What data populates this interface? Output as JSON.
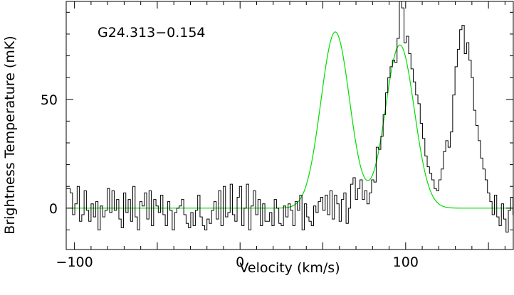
{
  "chart_data": {
    "type": "line",
    "annotation": "G24.313−0.154",
    "xlabel": "Velocity (km/s)",
    "ylabel": "Brightness Temperature (mK)",
    "xlim": [
      -105,
      165
    ],
    "ylim": [
      -19,
      95
    ],
    "x_ticks": [
      -100,
      0,
      100
    ],
    "y_ticks": [
      0,
      50
    ],
    "series": [
      {
        "kind": "spectrum-steps",
        "color": "#000000",
        "x_start": -104,
        "x_step": 1.4,
        "values": [
          9,
          7,
          -3,
          2,
          10,
          -6,
          -3,
          8,
          -1,
          -6,
          2,
          -4,
          3,
          -10,
          1,
          -4,
          -1,
          9,
          -2,
          8,
          -1,
          4,
          -5,
          -9,
          7,
          -2,
          4,
          -6,
          10,
          -4,
          -10,
          3,
          1,
          7,
          -5,
          8,
          -8,
          4,
          1,
          -2,
          6,
          -3,
          -8,
          3,
          -1,
          -10,
          -2,
          0,
          1,
          4,
          -3,
          -7,
          -9,
          -2,
          -8,
          -1,
          6,
          -4,
          -8,
          -10,
          -5,
          -7,
          -1,
          3,
          -5,
          8,
          -8,
          10,
          -4,
          -2,
          11,
          -3,
          -6,
          5,
          10,
          -8,
          0,
          11,
          -10,
          1,
          8,
          -3,
          4,
          -8,
          2,
          -6,
          -6,
          -2,
          -8,
          4,
          0,
          -7,
          -8,
          1,
          -4,
          2,
          -1,
          -8,
          3,
          -1,
          6,
          -10,
          2,
          -4,
          -6,
          -8,
          1,
          -2,
          3,
          5,
          -1,
          6,
          -3,
          8,
          -5,
          6,
          2,
          -6,
          4,
          7,
          -7,
          0,
          11,
          14,
          4,
          9,
          13,
          4,
          8,
          2,
          7,
          13,
          12,
          28,
          27,
          33,
          43,
          53,
          60,
          65,
          68,
          67,
          78,
          95,
          92,
          76,
          79,
          71,
          64,
          58,
          52,
          48,
          39,
          32,
          24,
          19,
          16,
          13,
          9,
          8,
          13,
          18,
          26,
          31,
          28,
          35,
          52,
          65,
          73,
          82,
          84,
          71,
          76,
          68,
          60,
          45,
          38,
          31,
          23,
          18,
          13,
          7,
          3,
          -3,
          6,
          -4,
          -8,
          2,
          -5,
          -11,
          -1,
          5,
          -3,
          -6,
          -2,
          1,
          -5,
          -2,
          5,
          -4,
          -1,
          7,
          -4,
          4,
          -3,
          -7,
          -6,
          6,
          -2,
          10,
          -5,
          -13
        ]
      },
      {
        "kind": "gaussian-fit",
        "color": "#00dd00",
        "components": [
          {
            "amplitude": 81,
            "center": 57.5,
            "sigma": 8.7
          },
          {
            "amplitude": 75,
            "center": 96.5,
            "sigma": 8.7
          }
        ]
      }
    ]
  }
}
